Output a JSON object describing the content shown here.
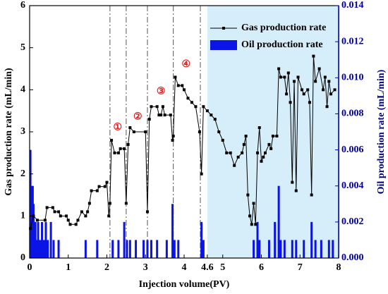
{
  "chart_data": {
    "type": "line_bar",
    "xlabel": "Injection volume(PV)",
    "ylabel": "Gas production rate (mL/min)",
    "y2label": "Oil production rate (mL/min)",
    "xlim": [
      0,
      8
    ],
    "xticks": [
      0,
      1,
      2,
      3,
      4,
      4.6,
      5,
      6,
      7,
      8
    ],
    "ylim": [
      0,
      6
    ],
    "yticks": [
      0,
      1,
      2,
      3,
      4,
      5,
      6
    ],
    "y2lim": [
      0,
      0.014
    ],
    "y2ticks": [
      {
        "value": 0,
        "label": "0.000"
      },
      {
        "value": 0.002,
        "label": "0.002"
      },
      {
        "value": 0.004,
        "label": "0.004"
      },
      {
        "value": 0.006,
        "label": "0.006"
      },
      {
        "value": 0.008,
        "label": "0.008"
      },
      {
        "value": 0.01,
        "label": "0.010"
      },
      {
        "value": 0.012,
        "label": "0.012"
      },
      {
        "value": 0.014,
        "label": "0.014"
      }
    ],
    "shade_from": 4.6,
    "shade_color": "#d6eef9",
    "divider_lines": [
      2.08,
      2.5,
      3.05,
      3.72,
      4.42
    ],
    "legend_position": "upper right",
    "annotations": [
      {
        "text": "①",
        "x": 2.28,
        "y": 3.1
      },
      {
        "text": "②",
        "x": 2.8,
        "y": 3.35
      },
      {
        "text": "③",
        "x": 3.4,
        "y": 3.95
      },
      {
        "text": "④",
        "x": 4.05,
        "y": 4.6
      }
    ],
    "series": [
      {
        "name": "Gas production rate",
        "kind": "line",
        "color": "#000000",
        "x": [
          0.02,
          0.1,
          0.2,
          0.4,
          0.45,
          0.6,
          0.65,
          0.75,
          0.8,
          0.95,
          1.0,
          1.05,
          1.2,
          1.25,
          1.35,
          1.45,
          1.5,
          1.55,
          1.6,
          1.75,
          1.8,
          1.95,
          2.0,
          2.05,
          2.08,
          2.12,
          2.2,
          2.3,
          2.35,
          2.45,
          2.5,
          2.55,
          2.6,
          2.7,
          3.0,
          3.05,
          3.1,
          3.15,
          3.3,
          3.35,
          3.4,
          3.45,
          3.5,
          3.65,
          3.7,
          3.72,
          3.77,
          3.85,
          3.95,
          4.0,
          4.1,
          4.2,
          4.3,
          4.4,
          4.45,
          4.5,
          4.6,
          4.7,
          4.8,
          4.9,
          5.0,
          5.1,
          5.2,
          5.3,
          5.4,
          5.5,
          5.55,
          5.6,
          5.65,
          5.7,
          5.75,
          5.8,
          5.85,
          5.9,
          5.95,
          6.0,
          6.05,
          6.1,
          6.2,
          6.25,
          6.3,
          6.4,
          6.45,
          6.5,
          6.6,
          6.65,
          6.7,
          6.75,
          6.8,
          6.85,
          6.9,
          6.95,
          7.05,
          7.1,
          7.2,
          7.25,
          7.3,
          7.35,
          7.4,
          7.5,
          7.6,
          7.65,
          7.7,
          7.75,
          7.8,
          7.9
        ],
        "values": [
          0.7,
          1.0,
          0.9,
          0.9,
          1.2,
          1.2,
          1.1,
          1.1,
          1.0,
          1.0,
          0.9,
          0.8,
          0.8,
          0.9,
          1.1,
          1.0,
          1.1,
          1.3,
          1.6,
          1.6,
          1.7,
          1.7,
          1.8,
          1.0,
          1.3,
          2.8,
          2.5,
          2.5,
          2.6,
          2.6,
          1.3,
          2.7,
          3.1,
          3.0,
          3.0,
          1.1,
          3.3,
          3.6,
          3.6,
          3.4,
          3.4,
          3.6,
          3.4,
          3.4,
          2.8,
          2.9,
          4.3,
          4.1,
          4.1,
          4.0,
          3.8,
          3.7,
          3.6,
          3.0,
          2.0,
          3.6,
          3.5,
          3.4,
          3.3,
          3.0,
          2.8,
          2.5,
          2.5,
          2.2,
          2.4,
          2.5,
          2.7,
          2.9,
          1.5,
          1.0,
          0.8,
          1.3,
          0.8,
          2.5,
          3.1,
          2.3,
          2.4,
          2.5,
          2.7,
          2.6,
          2.9,
          2.9,
          4.5,
          4.3,
          4.3,
          3.9,
          4.4,
          3.7,
          1.8,
          4.2,
          1.6,
          4.3,
          4.0,
          3.9,
          4.0,
          3.7,
          1.5,
          4.8,
          4.2,
          4.5,
          4.0,
          4.3,
          3.6,
          4.2,
          3.9,
          4.0
        ]
      },
      {
        "name": "Oil production rate",
        "kind": "bar",
        "axis": "y2",
        "color": "#0a14e6",
        "x": [
          0.02,
          0.05,
          0.08,
          0.1,
          0.12,
          0.15,
          0.18,
          0.22,
          0.27,
          0.32,
          0.37,
          0.42,
          0.47,
          0.55,
          0.62,
          0.75,
          1.45,
          1.75,
          2.15,
          2.3,
          2.45,
          2.52,
          2.6,
          2.75,
          2.95,
          3.05,
          3.15,
          3.3,
          3.55,
          3.7,
          3.75,
          3.85,
          4.45,
          4.5,
          5.8,
          5.9,
          5.95,
          6.2,
          6.35,
          6.45,
          6.5,
          6.6,
          6.8,
          6.9,
          7.1,
          7.3,
          7.4,
          7.55,
          7.75,
          7.85
        ],
        "values": [
          0.006,
          0.004,
          0.004,
          0.003,
          0.002,
          0.002,
          0.001,
          0.002,
          0.001,
          0.002,
          0.001,
          0.002,
          0.001,
          0.002,
          0.001,
          0.001,
          0.001,
          0.001,
          0.001,
          0.001,
          0.002,
          0.001,
          0.001,
          0.001,
          0.001,
          0.001,
          0.001,
          0.001,
          0.001,
          0.003,
          0.001,
          0.001,
          0.002,
          0.001,
          0.001,
          0.002,
          0.001,
          0.001,
          0.002,
          0.004,
          0.001,
          0.001,
          0.001,
          0.001,
          0.001,
          0.002,
          0.001,
          0.001,
          0.001,
          0.001
        ]
      }
    ]
  }
}
